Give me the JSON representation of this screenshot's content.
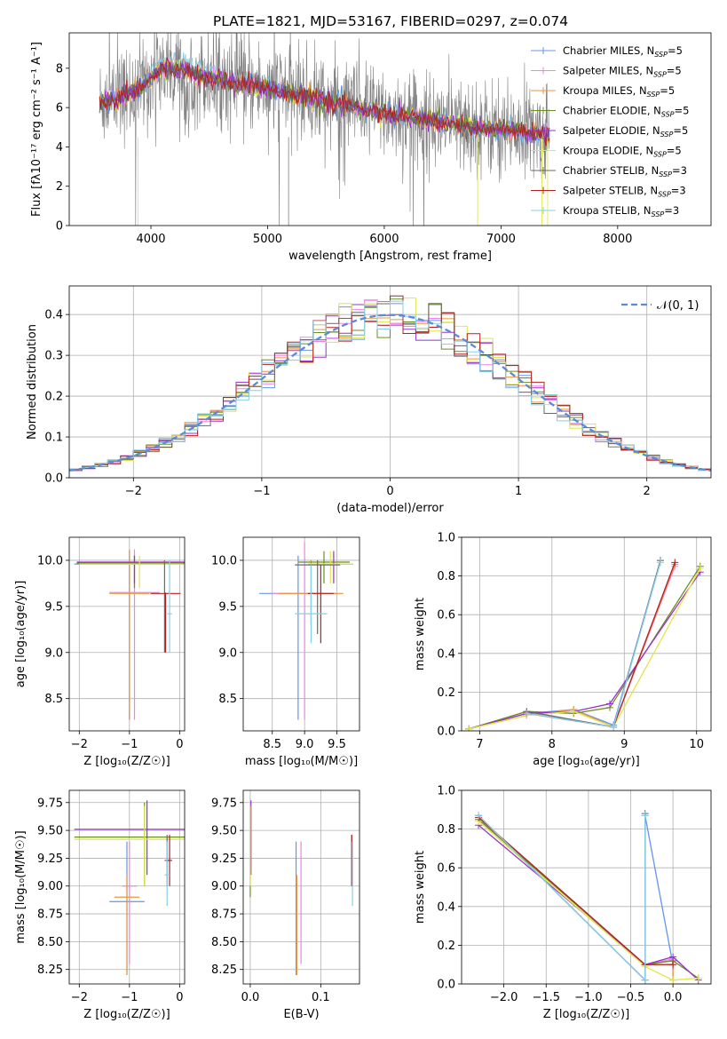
{
  "title": "PLATE=1821, MJD=53167, FIBERID=0297, z=0.074",
  "colors": [
    "#6495ed",
    "#ee82ee",
    "#e9963e",
    "#6b8e23",
    "#9932cc",
    "#dfe64a",
    "#696969",
    "#b22222",
    "#87ceeb"
  ],
  "chart_data": [
    {
      "id": "spectrum",
      "type": "line",
      "xlabel": "wavelength [Angstrom, rest frame]",
      "ylabel": "Flux [fλ10⁻¹⁷ erg cm⁻² s⁻¹ A⁻¹]",
      "xlim": [
        3300,
        8800
      ],
      "ylim": [
        0,
        9.8
      ],
      "xticks": [
        4000,
        5000,
        6000,
        7000,
        8000
      ],
      "yticks": [
        0,
        2,
        4,
        6,
        8
      ],
      "data_range": [
        3560,
        7420
      ],
      "continuum": {
        "x": [
          3560,
          3700,
          3900,
          4100,
          4300,
          4500,
          4800,
          5000,
          5300,
          5600,
          6000,
          6400,
          6800,
          7100,
          7420
        ],
        "y": [
          6.3,
          6.4,
          7.0,
          8.0,
          7.9,
          7.5,
          7.2,
          7.0,
          6.6,
          6.2,
          5.7,
          5.3,
          5.0,
          4.8,
          4.6
        ]
      },
      "legend": [
        {
          "name": "Chabrier MILES, N",
          "sub": "SSP",
          "suffix": "=5"
        },
        {
          "name": "Salpeter MILES, N",
          "sub": "SSP",
          "suffix": "=5"
        },
        {
          "name": "Kroupa MILES, N",
          "sub": "SSP",
          "suffix": "=5"
        },
        {
          "name": "Chabrier ELODIE, N",
          "sub": "SSP",
          "suffix": "=5"
        },
        {
          "name": "Salpeter ELODIE, N",
          "sub": "SSP",
          "suffix": "=5"
        },
        {
          "name": "Kroupa ELODIE, N",
          "sub": "SSP",
          "suffix": "=5"
        },
        {
          "name": "Chabrier STELIB, N",
          "sub": "SSP",
          "suffix": "=3"
        },
        {
          "name": "Salpeter STELIB, N",
          "sub": "SSP",
          "suffix": "=3"
        },
        {
          "name": "Kroupa STELIB, N",
          "sub": "SSP",
          "suffix": "=3"
        }
      ]
    },
    {
      "id": "residuals",
      "type": "histogram",
      "xlabel": "(data-model)/error",
      "ylabel": "Normed distribution",
      "xlim": [
        -2.5,
        2.5
      ],
      "ylim": [
        0,
        0.47
      ],
      "xticks": [
        -2,
        -1,
        0,
        1,
        2
      ],
      "yticks": [
        0.0,
        0.1,
        0.2,
        0.3,
        0.4
      ],
      "bin_width": 0.1,
      "legend": "𝒩(0, 1)",
      "reference_curve": "gaussian, mean 0, sigma 1"
    },
    {
      "id": "age_vs_Z",
      "type": "errorbar",
      "xlabel": "Z [log₁₀(Z/Z☉)]",
      "ylabel": "age  [log₁₀(age/yr)]",
      "xlim": [
        -2.2,
        0.1
      ],
      "ylim": [
        8.15,
        10.25
      ],
      "xticks": [
        -2,
        -1,
        0
      ],
      "yticks": [
        8.5,
        9.0,
        9.5,
        10.0
      ],
      "points": [
        {
          "x": -1.0,
          "y": 9.96,
          "xerr": 1.1,
          "ylo": 8.27,
          "yhi": 10.1,
          "c": 0
        },
        {
          "x": -0.9,
          "y": 9.65,
          "xerr": 0.5,
          "ylo": 8.27,
          "yhi": 10.12,
          "c": 1
        },
        {
          "x": -1.0,
          "y": 9.64,
          "xerr": 0.4,
          "ylo": 8.27,
          "yhi": 10.12,
          "c": 2
        },
        {
          "x": -0.9,
          "y": 9.97,
          "xerr": 1.15,
          "ylo": 9.7,
          "yhi": 10.05,
          "c": 3
        },
        {
          "x": -0.9,
          "y": 9.98,
          "xerr": 1.15,
          "ylo": 9.75,
          "yhi": 10.05,
          "c": 4
        },
        {
          "x": -0.8,
          "y": 9.96,
          "xerr": 1.2,
          "ylo": 9.7,
          "yhi": 10.05,
          "c": 5
        },
        {
          "x": -0.3,
          "y": 9.64,
          "xerr": 0.0,
          "ylo": 9.0,
          "yhi": 10.0,
          "c": 6
        },
        {
          "x": -0.28,
          "y": 9.64,
          "xerr": 0.3,
          "ylo": 9.0,
          "yhi": 9.65,
          "c": 7
        },
        {
          "x": -0.2,
          "y": 9.42,
          "xerr": 0.05,
          "ylo": 9.0,
          "yhi": 10.0,
          "c": 8
        }
      ]
    },
    {
      "id": "age_vs_mass",
      "type": "errorbar",
      "xlabel": "mass [log₁₀(M/M☉)]",
      "xlim": [
        8.05,
        9.85
      ],
      "ylim": [
        8.15,
        10.25
      ],
      "xticks": [
        8.5,
        9.0,
        9.5
      ],
      "yticks": [
        8.5,
        9.0,
        9.5,
        10.0
      ],
      "points": [
        {
          "x": 8.9,
          "y": 9.64,
          "xerr": 0.6,
          "ylo": 8.27,
          "yhi": 10.05,
          "c": 0
        },
        {
          "x": 9.0,
          "y": 9.64,
          "xerr": 0.5,
          "ylo": 8.27,
          "yhi": 10.2,
          "c": 1
        },
        {
          "x": 9.1,
          "y": 9.64,
          "xerr": 0.5,
          "ylo": 9.3,
          "yhi": 10.0,
          "c": 2
        },
        {
          "x": 9.3,
          "y": 9.98,
          "xerr": 0.4,
          "ylo": 9.75,
          "yhi": 10.1,
          "c": 3
        },
        {
          "x": 9.45,
          "y": 9.96,
          "xerr": 0.3,
          "ylo": 9.75,
          "yhi": 10.1,
          "c": 4
        },
        {
          "x": 9.4,
          "y": 9.96,
          "xerr": 0.35,
          "ylo": 9.75,
          "yhi": 10.1,
          "c": 5
        },
        {
          "x": 9.2,
          "y": 9.95,
          "xerr": 0.35,
          "ylo": 9.2,
          "yhi": 10.0,
          "c": 6
        },
        {
          "x": 9.25,
          "y": 9.64,
          "xerr": 0.2,
          "ylo": 9.1,
          "yhi": 9.95,
          "c": 7
        },
        {
          "x": 9.1,
          "y": 9.42,
          "xerr": 0.25,
          "ylo": 9.1,
          "yhi": 9.95,
          "c": 8
        }
      ]
    },
    {
      "id": "weight_vs_age",
      "type": "line",
      "xlabel": "age  [log₁₀(age/yr)]",
      "ylabel": "mass weight",
      "xlim": [
        6.75,
        10.2
      ],
      "ylim": [
        0,
        1.0
      ],
      "xticks": [
        7,
        8,
        9,
        10
      ],
      "yticks": [
        0.0,
        0.2,
        0.4,
        0.6,
        0.8,
        1.0
      ],
      "series": [
        {
          "c": 0,
          "x": [
            6.85,
            7.65,
            8.3,
            8.85,
            9.5
          ],
          "y": [
            0.01,
            0.09,
            0.11,
            0.03,
            0.88
          ]
        },
        {
          "c": 1,
          "x": [
            6.85,
            7.65,
            8.3,
            8.85,
            9.7
          ],
          "y": [
            0.01,
            0.08,
            0.11,
            0.02,
            0.85
          ]
        },
        {
          "c": 2,
          "x": [
            6.85,
            7.65,
            8.3,
            8.85,
            9.7
          ],
          "y": [
            0.01,
            0.08,
            0.11,
            0.02,
            0.86
          ]
        },
        {
          "c": 3,
          "x": [
            6.85,
            7.65,
            8.3,
            8.8,
            10.05
          ],
          "y": [
            0.01,
            0.1,
            0.09,
            0.12,
            0.85
          ]
        },
        {
          "c": 4,
          "x": [
            6.85,
            7.65,
            8.3,
            8.8,
            10.05
          ],
          "y": [
            0.01,
            0.09,
            0.1,
            0.14,
            0.82
          ]
        },
        {
          "c": 5,
          "x": [
            6.85,
            7.65,
            8.3,
            8.85,
            10.05
          ],
          "y": [
            0.01,
            0.08,
            0.1,
            0.02,
            0.84
          ]
        },
        {
          "c": 6,
          "x": [
            7.65,
            8.85,
            9.5
          ],
          "y": [
            0.1,
            0.02,
            0.88
          ]
        },
        {
          "c": 7,
          "x": [
            7.65,
            8.85,
            9.7
          ],
          "y": [
            0.09,
            0.02,
            0.87
          ]
        },
        {
          "c": 8,
          "x": [
            7.65,
            8.85,
            9.5
          ],
          "y": [
            0.09,
            0.02,
            0.87
          ]
        }
      ]
    },
    {
      "id": "mass_vs_Z",
      "type": "errorbar",
      "xlabel": "Z [log₁₀(Z/Z☉)]",
      "ylabel": "mass [log₁₀(M/M☉)]",
      "xlim": [
        -2.2,
        0.1
      ],
      "ylim": [
        8.12,
        9.86
      ],
      "xticks": [
        -2,
        -1,
        0
      ],
      "yticks": [
        8.25,
        8.5,
        8.75,
        9.0,
        9.25,
        9.5,
        9.75
      ],
      "points": [
        {
          "x": -1.05,
          "y": 8.86,
          "xerr": 0.35,
          "ylo": 8.2,
          "yhi": 9.4,
          "c": 0
        },
        {
          "x": -1.0,
          "y": 9.0,
          "xerr": 0.15,
          "ylo": 8.3,
          "yhi": 9.4,
          "c": 1
        },
        {
          "x": -1.05,
          "y": 8.9,
          "xerr": 0.25,
          "ylo": 8.2,
          "yhi": 9.1,
          "c": 2
        },
        {
          "x": -0.7,
          "y": 9.44,
          "xerr": 1.4,
          "ylo": 9.0,
          "yhi": 9.75,
          "c": 3
        },
        {
          "x": -0.65,
          "y": 9.51,
          "xerr": 1.45,
          "ylo": 9.1,
          "yhi": 9.77,
          "c": 4
        },
        {
          "x": -0.7,
          "y": 9.42,
          "xerr": 1.4,
          "ylo": 9.0,
          "yhi": 9.72,
          "c": 5
        },
        {
          "x": -0.25,
          "y": 9.23,
          "xerr": 0.05,
          "ylo": 9.0,
          "yhi": 9.46,
          "c": 6
        },
        {
          "x": -0.2,
          "y": 9.23,
          "xerr": 0.05,
          "ylo": 9.0,
          "yhi": 9.46,
          "c": 7
        },
        {
          "x": -0.25,
          "y": 9.1,
          "xerr": 0.05,
          "ylo": 8.82,
          "yhi": 9.4,
          "c": 8
        }
      ]
    },
    {
      "id": "mass_vs_ebv",
      "type": "errorbar",
      "xlabel": "E(B-V)",
      "xlim": [
        -0.01,
        0.155
      ],
      "ylim": [
        8.12,
        9.86
      ],
      "xticks": [
        0.0,
        0.1
      ],
      "yticks": [
        8.25,
        8.5,
        8.75,
        9.0,
        9.25,
        9.5,
        9.75
      ],
      "points": [
        {
          "x": 0.065,
          "y": 8.86,
          "xerr": 0,
          "ylo": 8.2,
          "yhi": 9.4,
          "c": 0
        },
        {
          "x": 0.072,
          "y": 9.0,
          "xerr": 0,
          "ylo": 8.3,
          "yhi": 9.4,
          "c": 1
        },
        {
          "x": 0.066,
          "y": 8.9,
          "xerr": 0,
          "ylo": 8.2,
          "yhi": 9.1,
          "c": 2
        },
        {
          "x": 0.0,
          "y": 9.44,
          "xerr": 0,
          "ylo": 8.9,
          "yhi": 9.72,
          "c": 3
        },
        {
          "x": 0.001,
          "y": 9.51,
          "xerr": 0,
          "ylo": 9.1,
          "yhi": 9.77,
          "c": 4
        },
        {
          "x": 0.0,
          "y": 9.42,
          "xerr": 0,
          "ylo": 9.0,
          "yhi": 9.72,
          "c": 5
        },
        {
          "x": 0.144,
          "y": 9.23,
          "xerr": 0,
          "ylo": 9.0,
          "yhi": 9.46,
          "c": 6
        },
        {
          "x": 0.144,
          "y": 9.23,
          "xerr": 0,
          "ylo": 9.0,
          "yhi": 9.46,
          "c": 7
        },
        {
          "x": 0.145,
          "y": 9.1,
          "xerr": 0,
          "ylo": 8.82,
          "yhi": 9.4,
          "c": 8
        }
      ]
    },
    {
      "id": "weight_vs_Z",
      "type": "line",
      "xlabel": "Z [log₁₀(Z/Z☉)]",
      "ylabel": "mass weight",
      "xlim": [
        -2.5,
        0.45
      ],
      "ylim": [
        0,
        1.0
      ],
      "xticks": [
        -2.0,
        -1.5,
        -1.0,
        -0.5,
        0.0
      ],
      "yticks": [
        0.0,
        0.2,
        0.4,
        0.6,
        0.8,
        1.0
      ],
      "series": [
        {
          "c": 0,
          "x": [
            -2.3,
            -0.33,
            -0.33,
            0.0
          ],
          "y": [
            0.87,
            0.02,
            0.87,
            0.1
          ]
        },
        {
          "c": 1,
          "x": [
            -2.3,
            -0.33,
            0.0,
            0.0
          ],
          "y": [
            0.85,
            0.1,
            0.13,
            0.02
          ]
        },
        {
          "c": 2,
          "x": [
            -2.3,
            -0.33,
            0.0,
            0.0
          ],
          "y": [
            0.86,
            0.1,
            0.12,
            0.02
          ]
        },
        {
          "c": 3,
          "x": [
            -2.3,
            -0.33,
            0.0,
            0.3
          ],
          "y": [
            0.85,
            0.1,
            0.12,
            0.03
          ]
        },
        {
          "c": 4,
          "x": [
            -2.3,
            -0.33,
            0.0,
            0.3
          ],
          "y": [
            0.82,
            0.1,
            0.14,
            0.02
          ]
        },
        {
          "c": 5,
          "x": [
            -2.3,
            -0.33,
            0.0,
            0.3
          ],
          "y": [
            0.84,
            0.09,
            0.02,
            0.03
          ]
        },
        {
          "c": 6,
          "x": [
            -2.3,
            -0.33,
            -0.33
          ],
          "y": [
            0.87,
            0.02,
            0.88
          ]
        },
        {
          "c": 7,
          "x": [
            -2.3,
            -0.33,
            0.0
          ],
          "y": [
            0.86,
            0.1,
            0.1
          ]
        },
        {
          "c": 8,
          "x": [
            -2.3,
            -0.33,
            -0.33
          ],
          "y": [
            0.87,
            0.02,
            0.87
          ]
        }
      ]
    }
  ]
}
